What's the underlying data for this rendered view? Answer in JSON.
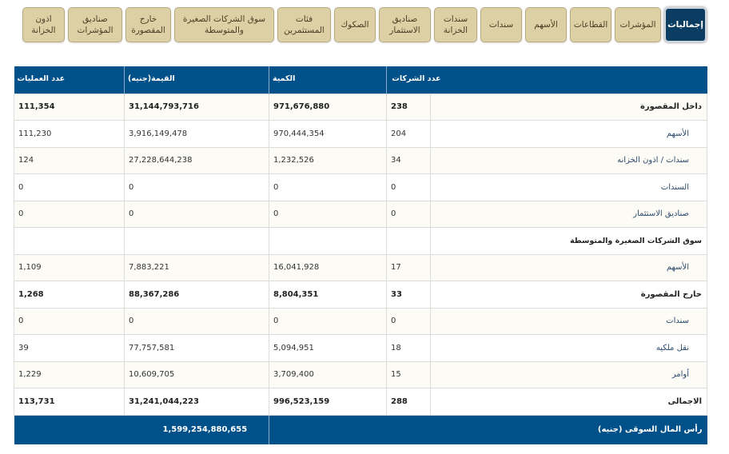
{
  "tabs": [
    "إجماليات",
    "المؤشرات",
    "القطاعات",
    "الأسهم",
    "سندات",
    "سندات الخزانة",
    "صناديق الاستثمار",
    "الصكوك",
    "فئات المستثمرين",
    "سوق الشركات الصغيرة والمتوسطة",
    "خارج المقصورة",
    "صناديق المؤشرات",
    "اذون الخزانة"
  ],
  "active_tab": "إجماليات",
  "headers": {
    "companies": "عدد الشركات",
    "quantity": "الكمية",
    "value": "القيمة(جنيه)",
    "operations": "عدد العمليات"
  },
  "rows": [
    {
      "label": "داخل المقصورة",
      "companies": "238",
      "quantity": "971,676,880",
      "value": "31,144,793,716",
      "operations": "111,354"
    },
    {
      "label": "الأسهم",
      "companies": "204",
      "quantity": "970,444,354",
      "value": "3,916,149,478",
      "operations": "111,230"
    },
    {
      "label": "سندات / اذون الخزانه",
      "companies": "34",
      "quantity": "1,232,526",
      "value": "27,228,644,238",
      "operations": "124"
    },
    {
      "label": "السندات",
      "companies": "0",
      "quantity": "0",
      "value": "0",
      "operations": "0"
    },
    {
      "label": "صناديق الاستثمار",
      "companies": "0",
      "quantity": "0",
      "value": "0",
      "operations": "0"
    },
    {
      "label": "سوق الشركات الصغيرة والمتوسطة",
      "companies": "",
      "quantity": "",
      "value": "",
      "operations": ""
    },
    {
      "label": "الأسهم",
      "companies": "17",
      "quantity": "16,041,928",
      "value": "7,883,221",
      "operations": "1,109"
    },
    {
      "label": "خارج المقصورة",
      "companies": "33",
      "quantity": "8,804,351",
      "value": "88,367,286",
      "operations": "1,268"
    },
    {
      "label": "سندات",
      "companies": "0",
      "quantity": "0",
      "value": "0",
      "operations": "0"
    },
    {
      "label": "نقل ملكيه",
      "companies": "18",
      "quantity": "5,094,951",
      "value": "77,757,581",
      "operations": "39"
    },
    {
      "label": "أوامر",
      "companies": "15",
      "quantity": "3,709,400",
      "value": "10,609,705",
      "operations": "1,229"
    },
    {
      "label": "الاجمالى",
      "companies": "288",
      "quantity": "996,523,159",
      "value": "31,241,044,223",
      "operations": "113,731"
    }
  ],
  "footer": {
    "label": "رأس المال السوقى (جنيه)",
    "value": "1,599,254,880,655"
  }
}
